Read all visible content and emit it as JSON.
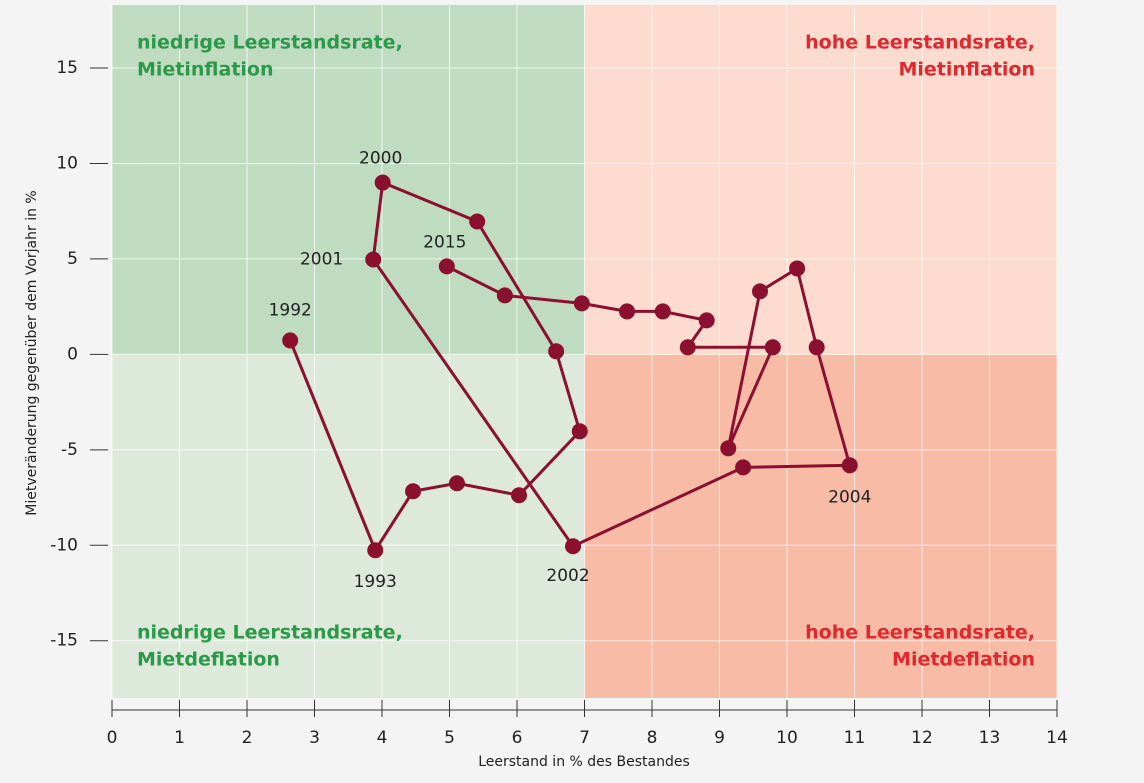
{
  "chart_data": {
    "type": "line",
    "x_label": "Leerstand in % des Bestandes",
    "y_label": "Mietveränderung gegenüber dem Vorjahr in %",
    "x": [
      2.64,
      3.9,
      4.46,
      5.11,
      6.03,
      6.93,
      6.58,
      5.41,
      4.01,
      3.87,
      6.83,
      9.35,
      10.93,
      10.44,
      10.15,
      9.6,
      9.13,
      9.79,
      8.53,
      8.81,
      8.16,
      7.63,
      6.96,
      5.82,
      4.96
    ],
    "series": [
      {
        "color": "#8b1030",
        "values": [
          0.73,
          -10.26,
          -7.17,
          -6.75,
          -7.38,
          -4.03,
          0.16,
          6.96,
          9.0,
          4.97,
          -10.05,
          -5.92,
          -5.81,
          0.37,
          4.5,
          3.3,
          -4.92,
          0.37,
          0.37,
          1.78,
          2.25,
          2.25,
          2.67,
          3.09,
          4.61
        ],
        "point_labels": [
          "1992",
          "1993",
          null,
          null,
          null,
          null,
          null,
          null,
          "2000",
          "2001",
          "2002",
          null,
          "2004",
          null,
          null,
          null,
          null,
          null,
          null,
          null,
          null,
          null,
          null,
          null,
          "2015"
        ]
      }
    ],
    "xlim": [
      0,
      14
    ],
    "ylim": [
      -18,
      18.3
    ],
    "xticks": [
      0,
      1,
      2,
      3,
      4,
      5,
      6,
      7,
      8,
      9,
      10,
      11,
      12,
      13,
      14
    ],
    "yticks": [
      -15,
      -10,
      -5,
      0,
      5,
      10,
      15
    ],
    "grid": true,
    "xsplit": 7,
    "ysplit": 0,
    "quadrants": [
      {
        "position": "top-left",
        "color": "#c0dcc0",
        "text_color": "#2a9a48",
        "label": [
          "niedrige Leerstandsrate,",
          "Mietinflation"
        ]
      },
      {
        "position": "top-right",
        "color": "#fddccf",
        "text_color": "#e0282e",
        "label": [
          "hohe Leerstandsrate,",
          "Mietinflation"
        ]
      },
      {
        "position": "bottom-left",
        "color": "#dde9da",
        "text_color": "#2a9a48",
        "label": [
          "niedrige Leerstandsrate,",
          "Mietdeflation"
        ]
      },
      {
        "position": "bottom-right",
        "color": "#f8bba6",
        "text_color": "#e0282e",
        "label": [
          "hohe Leerstandsrate,",
          "Mietdeflation"
        ]
      }
    ]
  }
}
